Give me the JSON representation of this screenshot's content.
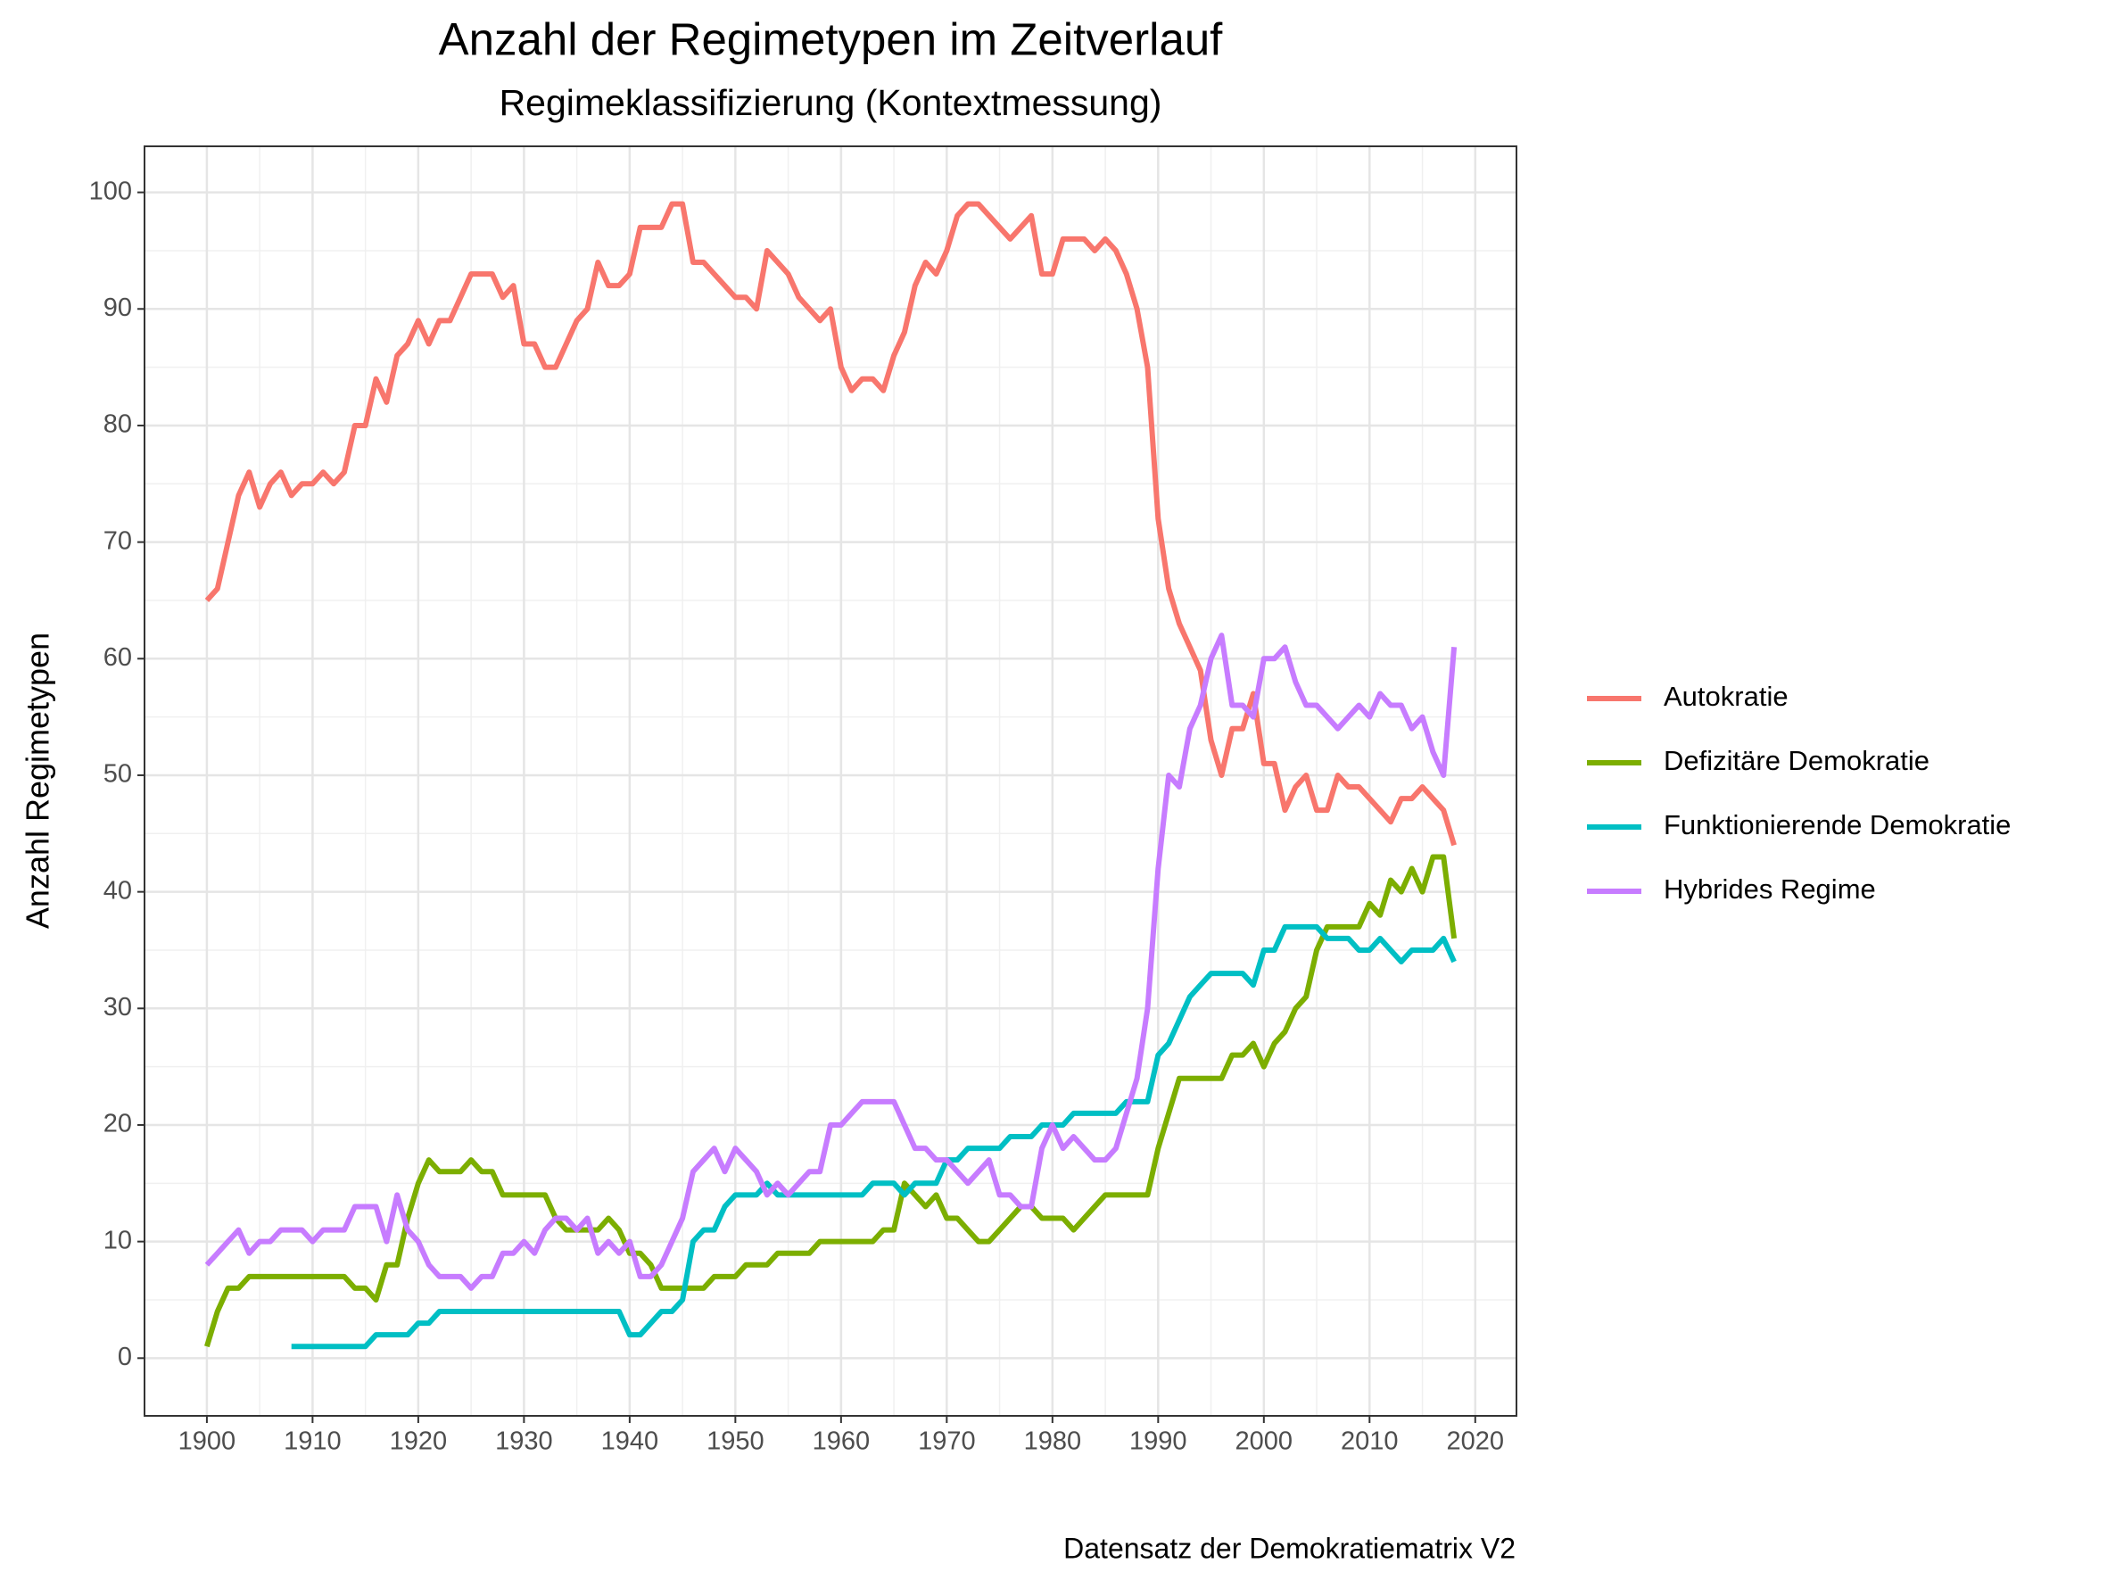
{
  "chart_data": {
    "type": "line",
    "title": "Anzahl der Regimetypen im Zeitverlauf",
    "subtitle": "Regimeklassifizierung (Kontextmessung)",
    "y_label": "Anzahl Regimetypen",
    "caption": "Datensatz der Demokratiematrix V2",
    "x": [
      1900,
      1901,
      1902,
      1903,
      1904,
      1905,
      1906,
      1907,
      1908,
      1909,
      1910,
      1911,
      1912,
      1913,
      1914,
      1915,
      1916,
      1917,
      1918,
      1919,
      1920,
      1921,
      1922,
      1923,
      1924,
      1925,
      1926,
      1927,
      1928,
      1929,
      1930,
      1931,
      1932,
      1933,
      1934,
      1935,
      1936,
      1937,
      1938,
      1939,
      1940,
      1941,
      1942,
      1943,
      1944,
      1945,
      1946,
      1947,
      1948,
      1949,
      1950,
      1951,
      1952,
      1953,
      1954,
      1955,
      1956,
      1957,
      1958,
      1959,
      1960,
      1961,
      1962,
      1963,
      1964,
      1965,
      1966,
      1967,
      1968,
      1969,
      1970,
      1971,
      1972,
      1973,
      1974,
      1975,
      1976,
      1977,
      1978,
      1979,
      1980,
      1981,
      1982,
      1983,
      1984,
      1985,
      1986,
      1987,
      1988,
      1989,
      1990,
      1991,
      1992,
      1993,
      1994,
      1995,
      1996,
      1997,
      1998,
      1999,
      2000,
      2001,
      2002,
      2003,
      2004,
      2005,
      2006,
      2007,
      2008,
      2009,
      2010,
      2011,
      2012,
      2013,
      2014,
      2015,
      2016,
      2017,
      2018
    ],
    "series": [
      {
        "name": "Autokratie",
        "color": "#F8766D",
        "values": [
          65,
          66,
          70,
          74,
          76,
          73,
          75,
          76,
          74,
          75,
          75,
          76,
          75,
          76,
          80,
          80,
          84,
          82,
          86,
          87,
          89,
          87,
          89,
          89,
          91,
          93,
          93,
          93,
          91,
          92,
          87,
          87,
          85,
          85,
          87,
          89,
          90,
          94,
          92,
          92,
          93,
          97,
          97,
          97,
          99,
          99,
          94,
          94,
          93,
          92,
          91,
          91,
          90,
          95,
          94,
          93,
          91,
          90,
          89,
          90,
          85,
          83,
          84,
          84,
          83,
          86,
          88,
          92,
          94,
          93,
          95,
          98,
          99,
          99,
          98,
          97,
          96,
          97,
          98,
          93,
          93,
          96,
          96,
          96,
          95,
          96,
          95,
          93,
          90,
          85,
          72,
          66,
          63,
          61,
          59,
          53,
          50,
          54,
          54,
          57,
          51,
          51,
          47,
          49,
          50,
          47,
          47,
          50,
          49,
          49,
          48,
          47,
          46,
          48,
          48,
          49,
          48,
          47,
          44
        ]
      },
      {
        "name": "Defizitäre Demokratie",
        "color": "#7CAE00",
        "values": [
          1,
          4,
          6,
          6,
          7,
          7,
          7,
          7,
          7,
          7,
          7,
          7,
          7,
          7,
          6,
          6,
          5,
          8,
          8,
          12,
          15,
          17,
          16,
          16,
          16,
          17,
          16,
          16,
          14,
          14,
          14,
          14,
          14,
          12,
          11,
          11,
          11,
          11,
          12,
          11,
          9,
          9,
          8,
          6,
          6,
          6,
          6,
          6,
          7,
          7,
          7,
          8,
          8,
          8,
          9,
          9,
          9,
          9,
          10,
          10,
          10,
          10,
          10,
          10,
          11,
          11,
          15,
          14,
          13,
          14,
          12,
          12,
          11,
          10,
          10,
          11,
          12,
          13,
          13,
          12,
          12,
          12,
          11,
          12,
          13,
          14,
          14,
          14,
          14,
          14,
          18,
          21,
          24,
          24,
          24,
          24,
          24,
          26,
          26,
          27,
          25,
          27,
          28,
          30,
          31,
          35,
          37,
          37,
          37,
          37,
          39,
          38,
          41,
          40,
          42,
          40,
          43,
          43,
          36
        ]
      },
      {
        "name": "Funktionierende Demokratie",
        "color": "#00BFC4",
        "values": [
          null,
          null,
          null,
          null,
          null,
          null,
          null,
          null,
          1,
          1,
          1,
          1,
          1,
          1,
          1,
          1,
          2,
          2,
          2,
          2,
          3,
          3,
          4,
          4,
          4,
          4,
          4,
          4,
          4,
          4,
          4,
          4,
          4,
          4,
          4,
          4,
          4,
          4,
          4,
          4,
          2,
          2,
          3,
          4,
          4,
          5,
          10,
          11,
          11,
          13,
          14,
          14,
          14,
          15,
          14,
          14,
          14,
          14,
          14,
          14,
          14,
          14,
          14,
          15,
          15,
          15,
          14,
          15,
          15,
          15,
          17,
          17,
          18,
          18,
          18,
          18,
          19,
          19,
          19,
          20,
          20,
          20,
          21,
          21,
          21,
          21,
          21,
          22,
          22,
          22,
          26,
          27,
          29,
          31,
          32,
          33,
          33,
          33,
          33,
          32,
          35,
          35,
          37,
          37,
          37,
          37,
          36,
          36,
          36,
          35,
          35,
          36,
          35,
          34,
          35,
          35,
          35,
          36,
          34
        ]
      },
      {
        "name": "Hybrides Regime",
        "color": "#C77CFF",
        "values": [
          8,
          9,
          10,
          11,
          9,
          10,
          10,
          11,
          11,
          11,
          10,
          11,
          11,
          11,
          13,
          13,
          13,
          10,
          14,
          11,
          10,
          8,
          7,
          7,
          7,
          6,
          7,
          7,
          9,
          9,
          10,
          9,
          11,
          12,
          12,
          11,
          12,
          9,
          10,
          9,
          10,
          7,
          7,
          8,
          10,
          12,
          16,
          17,
          18,
          16,
          18,
          17,
          16,
          14,
          15,
          14,
          15,
          16,
          16,
          20,
          20,
          21,
          22,
          22,
          22,
          22,
          20,
          18,
          18,
          17,
          17,
          16,
          15,
          16,
          17,
          14,
          14,
          13,
          13,
          18,
          20,
          18,
          19,
          18,
          17,
          17,
          18,
          21,
          24,
          30,
          42,
          50,
          49,
          54,
          56,
          60,
          62,
          56,
          56,
          55,
          60,
          60,
          61,
          58,
          56,
          56,
          55,
          54,
          55,
          56,
          55,
          57,
          56,
          56,
          54,
          55,
          52,
          50,
          61
        ]
      }
    ],
    "xlim": [
      1894.1,
      2023.9
    ],
    "ylim": [
      -4.95,
      103.95
    ],
    "xticks": [
      1900,
      1910,
      1920,
      1930,
      1940,
      1950,
      1960,
      1970,
      1980,
      1990,
      2000,
      2010,
      2020
    ],
    "yticks": [
      0,
      10,
      20,
      30,
      40,
      50,
      60,
      70,
      80,
      90,
      100
    ],
    "grid": true,
    "legend": "right"
  }
}
